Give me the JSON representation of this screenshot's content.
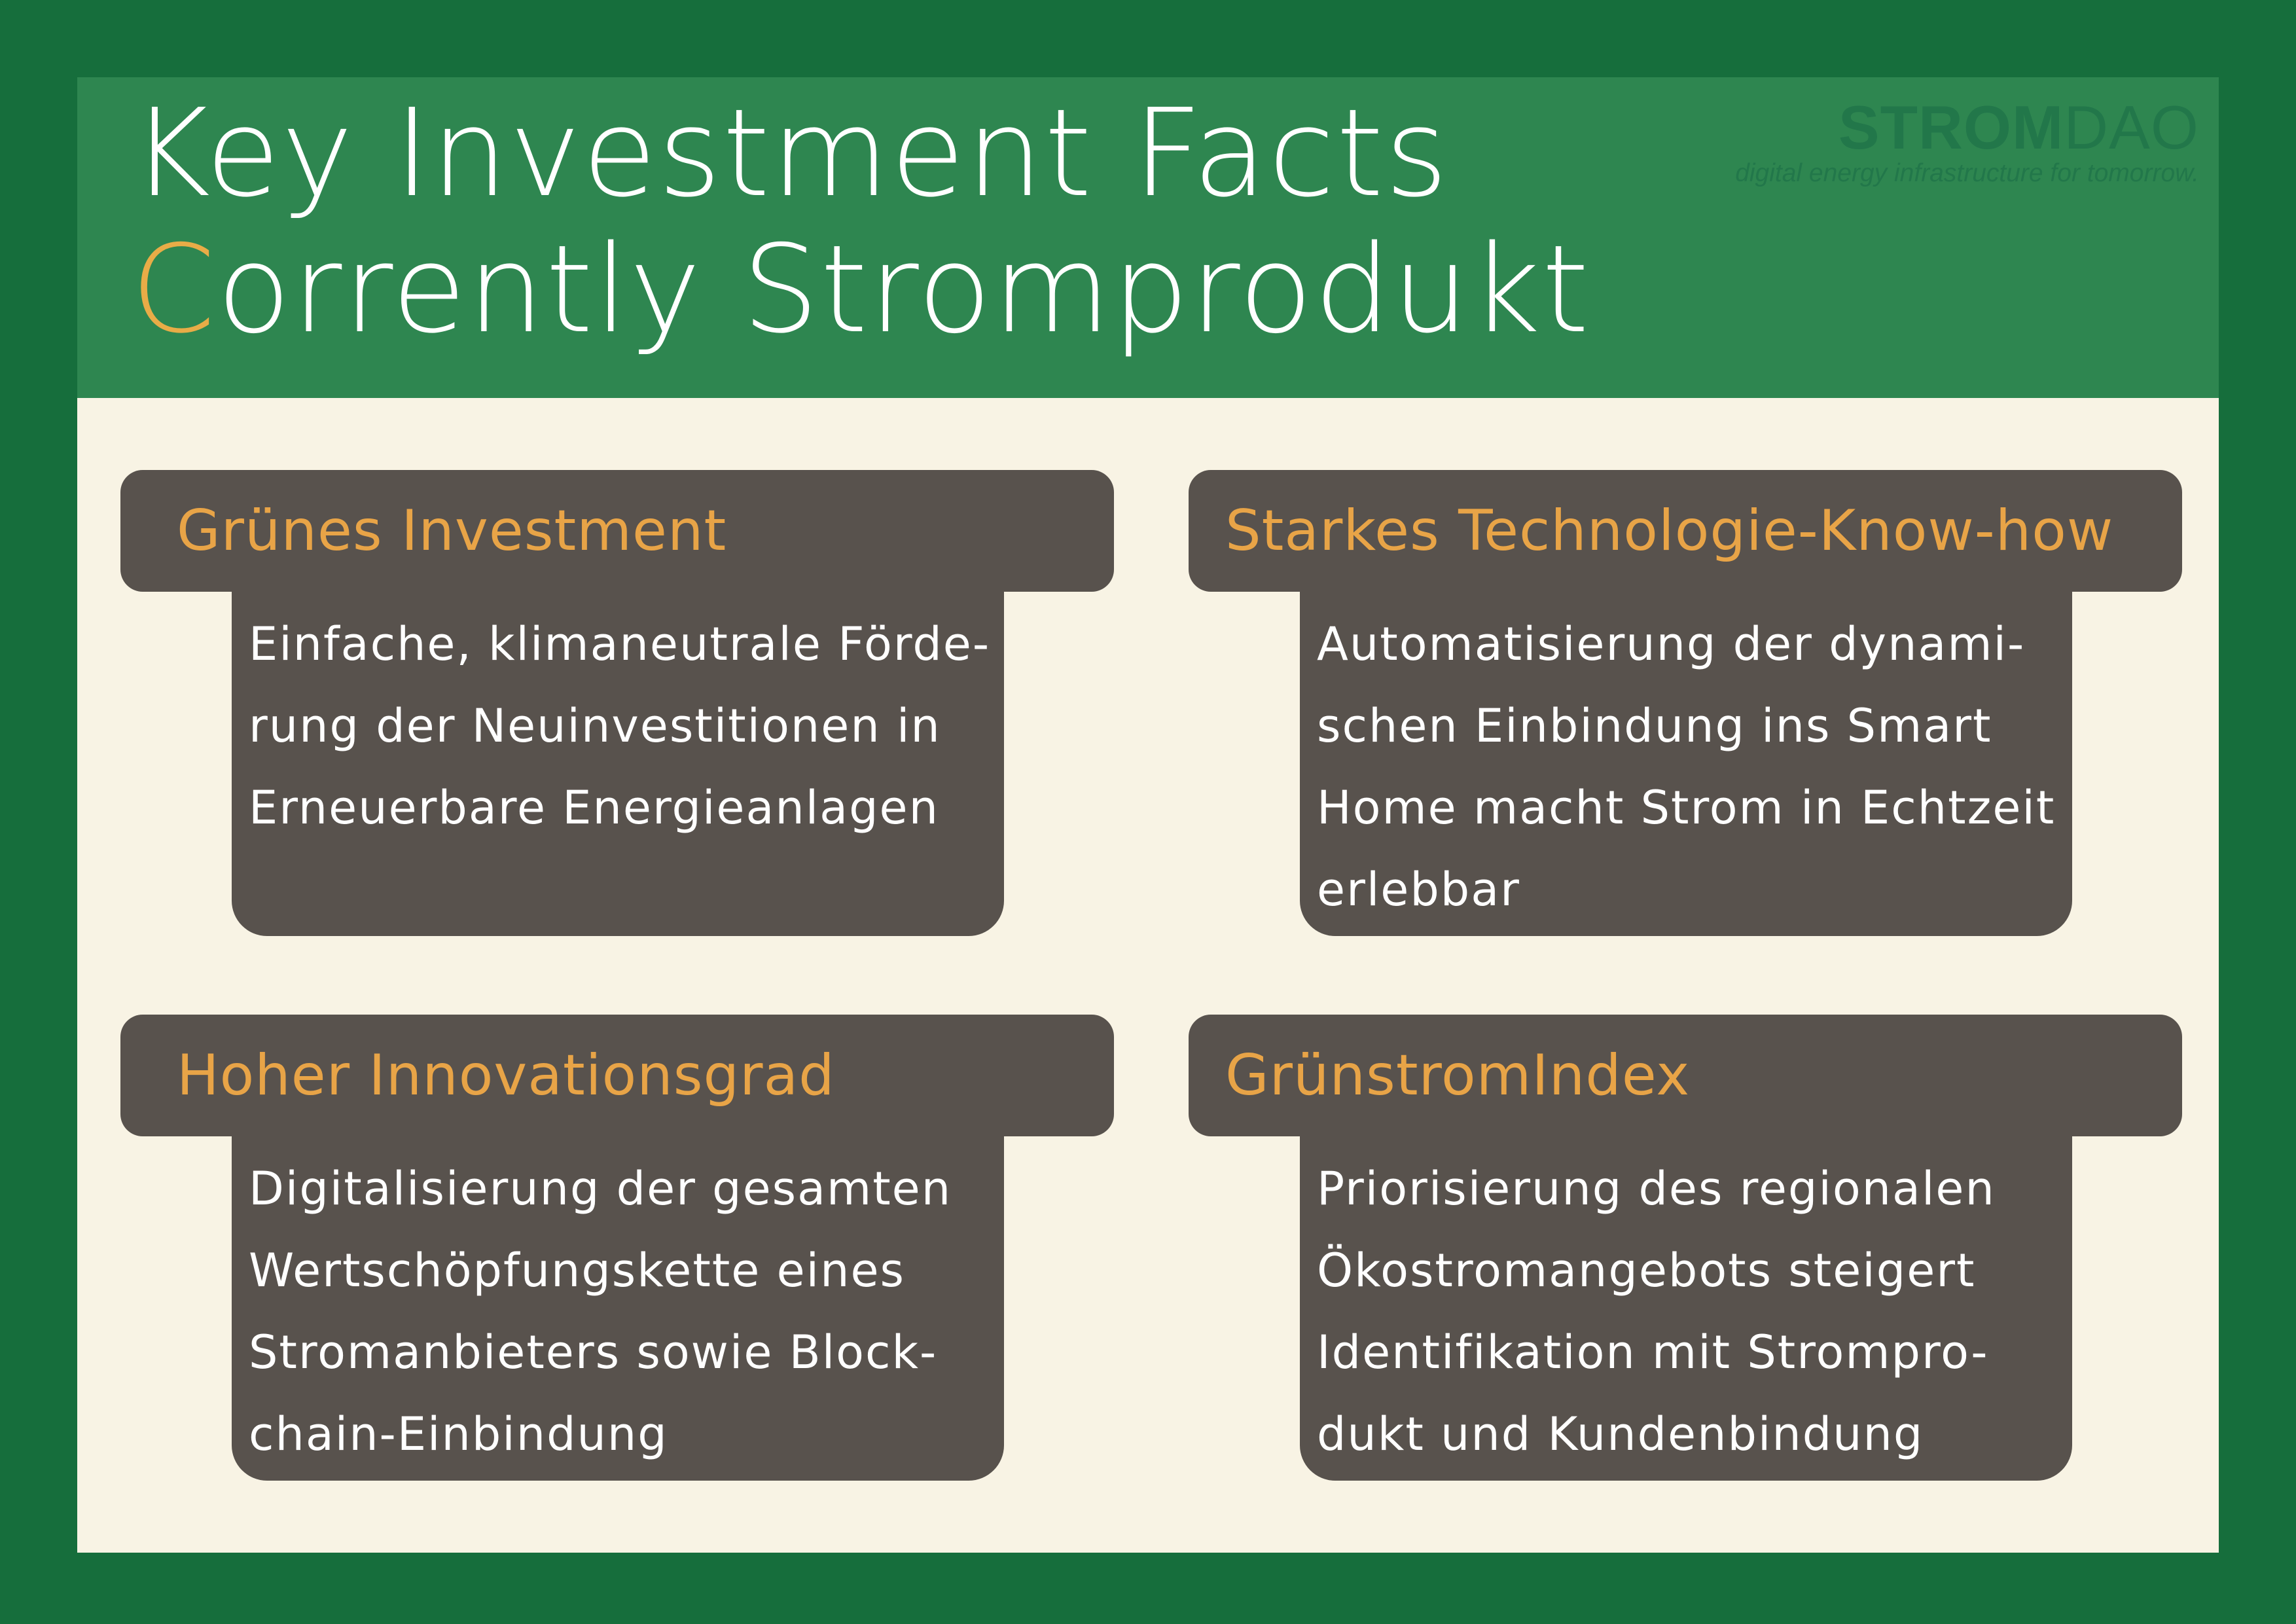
{
  "title": {
    "line1": "Key Investment Facts",
    "line2_first_letter": "C",
    "line2_rest": "orrently Stromprodukt"
  },
  "logo": {
    "strong": "STROM",
    "light": "DAO",
    "tagline": "digital energy infrastructure for tomorrow."
  },
  "cards": [
    {
      "heading": "Grünes Investment",
      "lines": [
        "Einfache, klimaneutrale Förde-",
        "rung der Neuinvestitionen in",
        "Erneuerbare Energieanlagen"
      ]
    },
    {
      "heading": "Starkes Technologie-Know-how",
      "lines": [
        "Automatisierung der dynami-",
        "schen Einbindung ins Smart",
        "Home macht Strom in Echtzeit",
        "erlebbar"
      ]
    },
    {
      "heading": "Hoher Innovationsgrad",
      "lines": [
        "Digitalisierung der gesamten",
        "Wertschöpfungskette eines",
        "Stromanbieters sowie Block-",
        "chain-Einbindung"
      ]
    },
    {
      "heading": "GrünstromIndex",
      "lines": [
        "Priorisierung des regionalen",
        "Ökostromangebots steigert",
        "Identifikation mit Strompro-",
        "dukt und Kundenbindung"
      ]
    }
  ],
  "colors": {
    "outer_border": "#166e3c",
    "header_green": "#2e8650",
    "background_cream": "#f8f3e4",
    "card_brown": "#58524d",
    "accent_orange": "#e8a447",
    "logo_green": "#22774a"
  }
}
